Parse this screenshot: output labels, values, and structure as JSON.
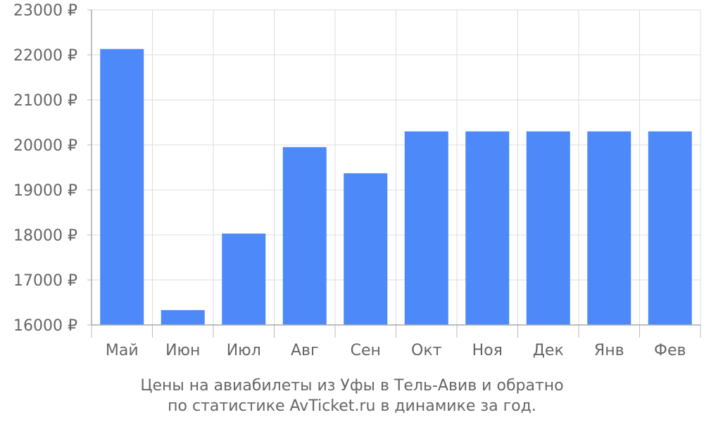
{
  "chart_data": {
    "type": "bar",
    "categories": [
      "Май",
      "Июн",
      "Июл",
      "Авг",
      "Сен",
      "Окт",
      "Ноя",
      "Дек",
      "Янв",
      "Фев"
    ],
    "values": [
      22130,
      16330,
      18030,
      19950,
      19370,
      20300,
      20300,
      20300,
      20300,
      20300
    ],
    "ylim": [
      16000,
      23000
    ],
    "yticks": [
      16000,
      17000,
      18000,
      19000,
      20000,
      21000,
      22000,
      23000
    ],
    "currency_suffix": " ₽",
    "grid": true,
    "bar_color": "#4d89f9",
    "caption_line1": "Цены на авиабилеты из Уфы в Тель-Авив и обратно",
    "caption_line2": "по статистике AvTicket.ru в динамике за год."
  }
}
